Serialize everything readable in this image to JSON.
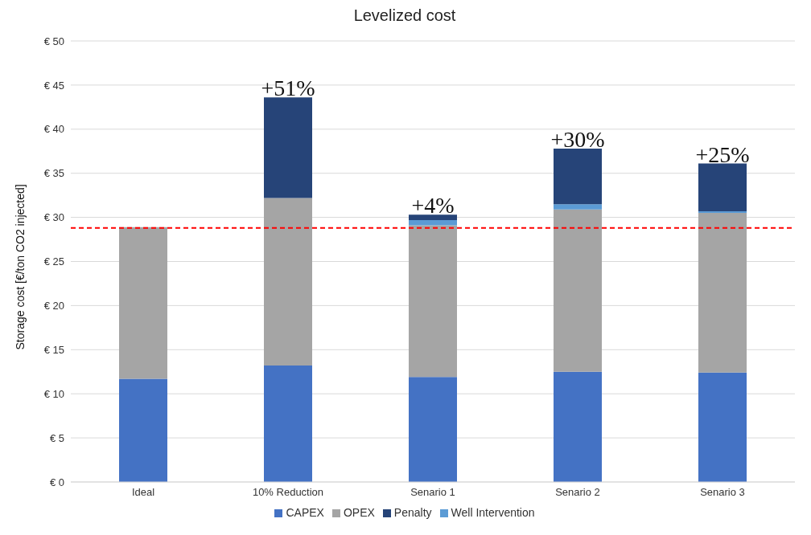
{
  "chart_data": {
    "type": "bar",
    "title": "Levelized cost",
    "ylabel": "Storage cost [€/ton CO2 injected]",
    "categories": [
      "Ideal",
      "10% Reduction",
      "Senario 1",
      "Senario 2",
      "Senario 3"
    ],
    "stacked": true,
    "series": [
      {
        "name": "CAPEX",
        "color": "#4472c4",
        "values": [
          11.7,
          13.2,
          11.9,
          12.5,
          12.4
        ]
      },
      {
        "name": "OPEX",
        "color": "#a5a5a5",
        "values": [
          17.2,
          19.0,
          17.2,
          18.4,
          18.1
        ]
      },
      {
        "name": "Well Intervention",
        "color": "#5b9bd5",
        "values": [
          0,
          0,
          0.6,
          0.6,
          0.2
        ]
      },
      {
        "name": "Penalty",
        "color": "#264478",
        "values": [
          0,
          11.4,
          0.6,
          6.3,
          5.4
        ]
      }
    ],
    "ylim": [
      0,
      50
    ],
    "yticks": [
      {
        "value": 0,
        "label": "€ 0"
      },
      {
        "value": 5,
        "label": "€ 5"
      },
      {
        "value": 10,
        "label": "€ 10"
      },
      {
        "value": 15,
        "label": "€ 15"
      },
      {
        "value": 20,
        "label": "€ 20"
      },
      {
        "value": 25,
        "label": "€ 25"
      },
      {
        "value": 30,
        "label": "€ 30"
      },
      {
        "value": 35,
        "label": "€ 35"
      },
      {
        "value": 40,
        "label": "€ 40"
      },
      {
        "value": 45,
        "label": "€ 45"
      },
      {
        "value": 50,
        "label": "€ 50"
      }
    ],
    "grid": "y",
    "legend": "bottom",
    "ref_lines": [
      {
        "axis": "y",
        "value": 28.8,
        "color": "#ff0000",
        "line_style": "dashed"
      }
    ],
    "annotations": [
      {
        "text": "+51%",
        "x": "10% Reduction",
        "y": 43.6
      },
      {
        "text": "+4%",
        "x": "Senario 1",
        "y": 30.3
      },
      {
        "text": "+30%",
        "x": "Senario 2",
        "y": 37.8
      },
      {
        "text": "+25%",
        "x": "Senario 3",
        "y": 36.1
      }
    ]
  }
}
